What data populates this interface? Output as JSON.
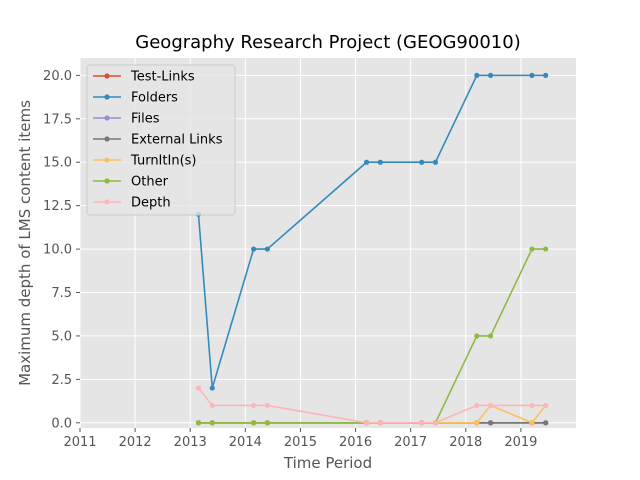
{
  "chart_data": {
    "type": "line",
    "title": "Geography Research Project (GEOG90010)",
    "xlabel": "Time Period",
    "ylabel": "Maximum depth of LMS content items",
    "xlim": [
      2011,
      2020
    ],
    "ylim": [
      -0.3,
      21.0
    ],
    "x_ticks": [
      2011,
      2012,
      2013,
      2014,
      2015,
      2016,
      2017,
      2018,
      2019
    ],
    "y_ticks": [
      0.0,
      2.5,
      5.0,
      7.5,
      10.0,
      12.5,
      15.0,
      17.5,
      20.0
    ],
    "y_tick_labels": [
      "0.0",
      "2.5",
      "5.0",
      "7.5",
      "10.0",
      "12.5",
      "15.0",
      "17.5",
      "20.0"
    ],
    "grid": true,
    "legend_position": "top-left",
    "x": [
      2013.15,
      2013.4,
      2014.15,
      2014.4,
      2016.2,
      2016.45,
      2017.2,
      2017.45,
      2018.2,
      2018.45,
      2019.2,
      2019.45
    ],
    "series": [
      {
        "name": "Test-Links",
        "color": "#E24A33",
        "values": [
          0,
          0,
          0,
          0,
          0,
          0,
          0,
          0,
          0,
          0,
          0,
          0
        ]
      },
      {
        "name": "Folders",
        "color": "#348ABD",
        "values": [
          12,
          2,
          10,
          10,
          15,
          15,
          15,
          15,
          20,
          20,
          20,
          20
        ]
      },
      {
        "name": "Files",
        "color": "#988ED5",
        "values": [
          0,
          0,
          0,
          0,
          0,
          0,
          0,
          0,
          0,
          0,
          0,
          0
        ]
      },
      {
        "name": "External Links",
        "color": "#777777",
        "values": [
          0,
          0,
          0,
          0,
          0,
          0,
          0,
          0,
          0,
          0,
          0,
          0
        ]
      },
      {
        "name": "TurnItIn(s)",
        "color": "#FBC15E",
        "values": [
          0,
          0,
          0,
          0,
          0,
          0,
          0,
          0,
          0,
          1,
          0,
          1
        ]
      },
      {
        "name": "Other",
        "color": "#8EBA42",
        "values": [
          0,
          0,
          0,
          0,
          0,
          0,
          0,
          0,
          5,
          5,
          10,
          10
        ]
      },
      {
        "name": "Depth",
        "color": "#FFB5B8",
        "values": [
          2,
          1,
          1,
          1,
          0,
          0,
          0,
          0,
          1,
          1,
          1,
          1
        ]
      }
    ]
  }
}
